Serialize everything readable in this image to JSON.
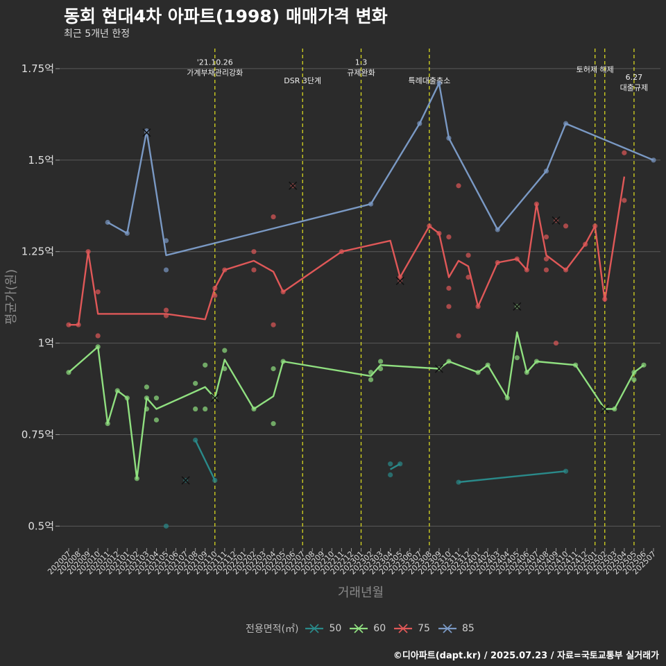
{
  "chart_data": {
    "type": "line",
    "title": "동회 현대4차 아파트(1998) 매매가격 변화",
    "subtitle": "최근 5개년 한정",
    "xlabel": "거래년월",
    "ylabel": "평균가(원)",
    "caption": "©디아파트(dapt.kr) / 2025.07.23 / 자료=국토교통부 실거래가",
    "legend_title": "전용면적(㎡)",
    "legend_placement": "bottom",
    "grid": true,
    "ylim": [
      0.44,
      1.82
    ],
    "yticks": [
      {
        "value": 0.5,
        "label": "0.5억"
      },
      {
        "value": 0.75,
        "label": "0.75억"
      },
      {
        "value": 1.0,
        "label": "1억"
      },
      {
        "value": 1.25,
        "label": "1.25억"
      },
      {
        "value": 1.5,
        "label": "1.5억"
      },
      {
        "value": 1.75,
        "label": "1.75억"
      }
    ],
    "x_categories": [
      "202007",
      "202008",
      "202009",
      "202010",
      "202011",
      "202012",
      "202101",
      "202102",
      "202103",
      "202104",
      "202105",
      "202106",
      "202107",
      "202108",
      "202109",
      "202110",
      "202111",
      "202112",
      "202201",
      "202202",
      "202203",
      "202204",
      "202205",
      "202206",
      "202207",
      "202208",
      "202209",
      "202210",
      "202211",
      "202212",
      "202301",
      "202302",
      "202303",
      "202304",
      "202305",
      "202306",
      "202307",
      "202308",
      "202309",
      "202310",
      "202311",
      "202312",
      "202401",
      "202402",
      "202403",
      "202404",
      "202405",
      "202406",
      "202407",
      "202408",
      "202409",
      "202410",
      "202411",
      "202412",
      "202501",
      "202502",
      "202503",
      "202504",
      "202505",
      "202506",
      "202507"
    ],
    "events": [
      {
        "x": 15.0,
        "label": "'21.10.26\n가계부채관리강화",
        "label_y": 1.76
      },
      {
        "x": 24.0,
        "label": "DSR 3단계",
        "label_y": 1.71
      },
      {
        "x": 30.0,
        "label": "1.3\n규제완화",
        "label_y": 1.76
      },
      {
        "x": 37.0,
        "label": "특례대출축소",
        "label_y": 1.71
      },
      {
        "x": 54.0,
        "label": "토허제 해제",
        "label_y": 1.74
      },
      {
        "x": 55.0,
        "label": "",
        "label_y": 1.74
      },
      {
        "x": 58.0,
        "label": "6.27\n대출규제",
        "label_y": 1.72
      }
    ],
    "series": [
      {
        "name": "50",
        "color": "#2a8a8a",
        "line": [
          [
            13,
            0.735
          ],
          [
            15,
            0.625
          ],
          null,
          [
            33,
            0.655
          ],
          [
            34,
            0.67
          ],
          null,
          [
            40,
            0.62
          ],
          [
            51,
            0.65
          ]
        ],
        "points": [
          [
            13,
            0.735
          ],
          [
            15,
            0.625
          ],
          [
            10,
            0.5
          ],
          [
            33,
            0.67
          ],
          [
            33,
            0.64
          ],
          [
            34,
            0.67
          ],
          [
            40,
            0.62
          ],
          [
            51,
            0.65
          ]
        ],
        "crosses": [
          [
            12,
            0.625
          ]
        ]
      },
      {
        "name": "60",
        "color": "#90e080",
        "line": [
          [
            0,
            0.92
          ],
          [
            3,
            0.99
          ],
          [
            4,
            0.78
          ],
          [
            5,
            0.87
          ],
          [
            6,
            0.85
          ],
          [
            7,
            0.63
          ],
          [
            8,
            0.85
          ],
          [
            9,
            0.82
          ],
          [
            14,
            0.88
          ],
          [
            15,
            0.85
          ],
          [
            16,
            0.955
          ],
          [
            19,
            0.82
          ],
          [
            21,
            0.855
          ],
          [
            22,
            0.95
          ],
          [
            31,
            0.91
          ],
          [
            32,
            0.94
          ],
          [
            38,
            0.93
          ],
          [
            39,
            0.95
          ],
          [
            42,
            0.92
          ],
          [
            43,
            0.94
          ],
          [
            45,
            0.85
          ],
          [
            46,
            1.03
          ],
          [
            47,
            0.92
          ],
          [
            48,
            0.95
          ],
          [
            52,
            0.94
          ],
          [
            55,
            0.82
          ],
          [
            56,
            0.82
          ],
          [
            58,
            0.92
          ],
          [
            59,
            0.94
          ]
        ],
        "points": [
          [
            0,
            0.92
          ],
          [
            3,
            0.99
          ],
          [
            4,
            0.78
          ],
          [
            5,
            0.87
          ],
          [
            6,
            0.85
          ],
          [
            7,
            0.63
          ],
          [
            8,
            0.85
          ],
          [
            8,
            0.88
          ],
          [
            8,
            0.82
          ],
          [
            9,
            0.85
          ],
          [
            9,
            0.79
          ],
          [
            13,
            0.89
          ],
          [
            13,
            0.82
          ],
          [
            14,
            0.94
          ],
          [
            14,
            0.82
          ],
          [
            16,
            0.98
          ],
          [
            16,
            0.93
          ],
          [
            19,
            0.82
          ],
          [
            21,
            0.93
          ],
          [
            21,
            0.78
          ],
          [
            22,
            0.95
          ],
          [
            31,
            0.9
          ],
          [
            31,
            0.92
          ],
          [
            32,
            0.93
          ],
          [
            32,
            0.95
          ],
          [
            39,
            0.95
          ],
          [
            42,
            0.92
          ],
          [
            43,
            0.94
          ],
          [
            45,
            0.85
          ],
          [
            46,
            0.96
          ],
          [
            47,
            0.92
          ],
          [
            48,
            0.95
          ],
          [
            52,
            0.94
          ],
          [
            56,
            0.82
          ],
          [
            58,
            0.9
          ],
          [
            58,
            0.92
          ],
          [
            59,
            0.94
          ]
        ],
        "crosses": [
          [
            15,
            0.85
          ],
          [
            38,
            0.93
          ],
          [
            46,
            1.1
          ],
          [
            55,
            0.82
          ]
        ]
      },
      {
        "name": "75",
        "color": "#e05858",
        "line": [
          [
            0,
            1.05
          ],
          [
            1,
            1.05
          ],
          [
            2,
            1.25
          ],
          [
            3,
            1.08
          ],
          [
            10,
            1.08
          ],
          [
            14,
            1.065
          ],
          [
            15,
            1.15
          ],
          [
            16,
            1.2
          ],
          [
            19,
            1.225
          ],
          [
            21,
            1.195
          ],
          [
            22,
            1.14
          ],
          [
            28,
            1.25
          ],
          [
            33,
            1.28
          ],
          [
            34,
            1.18
          ],
          [
            37,
            1.32
          ],
          [
            38,
            1.3
          ],
          [
            39,
            1.18
          ],
          [
            40,
            1.225
          ],
          [
            41,
            1.21
          ],
          [
            42,
            1.1
          ],
          [
            44,
            1.22
          ],
          [
            46,
            1.23
          ],
          [
            47,
            1.2
          ],
          [
            48,
            1.38
          ],
          [
            49,
            1.24
          ],
          [
            51,
            1.2
          ],
          [
            53,
            1.27
          ],
          [
            54,
            1.32
          ],
          [
            55,
            1.115
          ],
          [
            57,
            1.455
          ]
        ],
        "points": [
          [
            0,
            1.05
          ],
          [
            1,
            1.05
          ],
          [
            2,
            1.25
          ],
          [
            3,
            1.14
          ],
          [
            3,
            1.02
          ],
          [
            10,
            1.09
          ],
          [
            10,
            1.075
          ],
          [
            15,
            1.13
          ],
          [
            15,
            1.15
          ],
          [
            16,
            1.2
          ],
          [
            19,
            1.25
          ],
          [
            19,
            1.2
          ],
          [
            21,
            1.345
          ],
          [
            21,
            1.05
          ],
          [
            22,
            1.14
          ],
          [
            28,
            1.25
          ],
          [
            34,
            1.18
          ],
          [
            37,
            1.32
          ],
          [
            38,
            1.3
          ],
          [
            39,
            1.29
          ],
          [
            39,
            1.15
          ],
          [
            39,
            1.1
          ],
          [
            40,
            1.43
          ],
          [
            40,
            1.02
          ],
          [
            41,
            1.24
          ],
          [
            41,
            1.18
          ],
          [
            42,
            1.1
          ],
          [
            44,
            1.22
          ],
          [
            46,
            1.23
          ],
          [
            47,
            1.2
          ],
          [
            48,
            1.38
          ],
          [
            49,
            1.29
          ],
          [
            49,
            1.23
          ],
          [
            49,
            1.2
          ],
          [
            50,
            1.0
          ],
          [
            51,
            1.32
          ],
          [
            51,
            1.2
          ],
          [
            53,
            1.27
          ],
          [
            54,
            1.32
          ],
          [
            55,
            1.12
          ],
          [
            57,
            1.52
          ],
          [
            57,
            1.39
          ]
        ],
        "crosses": [
          [
            23,
            1.43
          ],
          [
            34,
            1.17
          ],
          [
            50,
            1.335
          ]
        ]
      },
      {
        "name": "85",
        "color": "#7a99c4",
        "line": [
          [
            4,
            1.33
          ],
          [
            6,
            1.3
          ],
          [
            8,
            1.58
          ],
          [
            10,
            1.24
          ],
          [
            31,
            1.38
          ],
          [
            36,
            1.6
          ],
          [
            38,
            1.71
          ],
          [
            39,
            1.56
          ],
          [
            44,
            1.31
          ],
          [
            49,
            1.47
          ],
          [
            51,
            1.6
          ],
          [
            60,
            1.5
          ]
        ],
        "points": [
          [
            4,
            1.33
          ],
          [
            6,
            1.3
          ],
          [
            8,
            1.58
          ],
          [
            10,
            1.28
          ],
          [
            10,
            1.2
          ],
          [
            31,
            1.38
          ],
          [
            36,
            1.6
          ],
          [
            38,
            1.71
          ],
          [
            39,
            1.56
          ],
          [
            44,
            1.31
          ],
          [
            49,
            1.47
          ],
          [
            51,
            1.6
          ],
          [
            60,
            1.5
          ]
        ],
        "crosses": [
          [
            8,
            1.575
          ]
        ]
      }
    ]
  }
}
